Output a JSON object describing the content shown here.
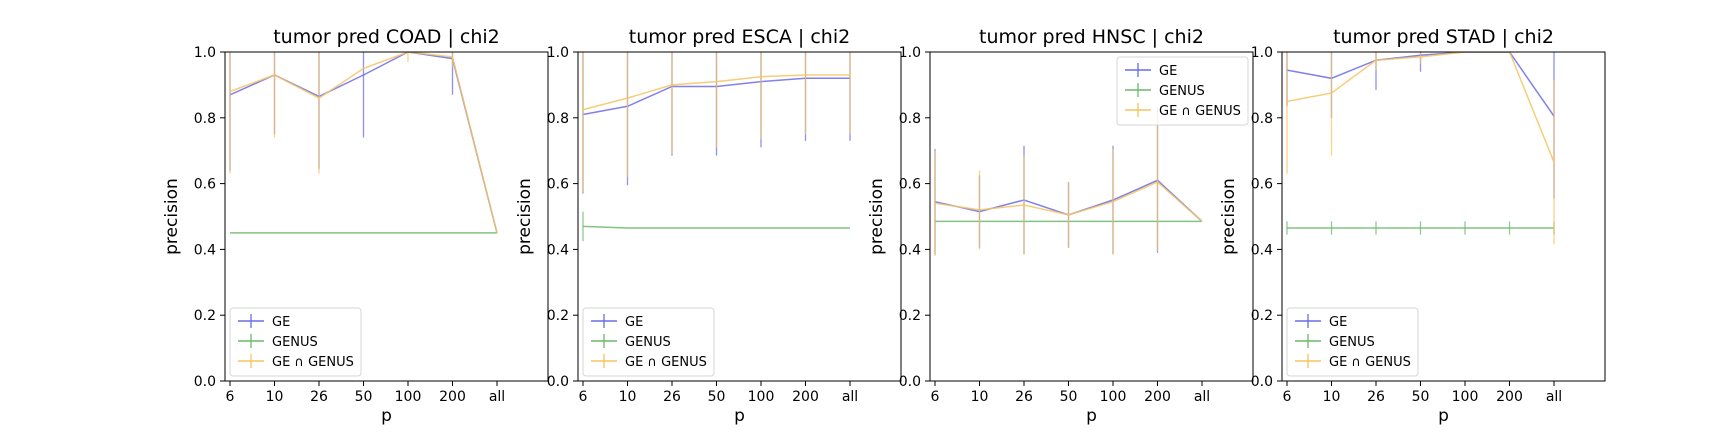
{
  "chart_data": [
    {
      "type": "line",
      "title": "tumor pred COAD | chi2",
      "xlabel": "p",
      "ylabel": "precision",
      "categories": [
        "6",
        "10",
        "26",
        "50",
        "100",
        "200",
        "all"
      ],
      "ylim": [
        0.0,
        1.0
      ],
      "yticks": [
        "0.0",
        "0.2",
        "0.4",
        "0.6",
        "0.8",
        "1.0"
      ],
      "legend_position": "lower-left",
      "series": [
        {
          "name": "GE",
          "color": "#6b6be8",
          "values": [
            0.87,
            0.93,
            0.865,
            0.93,
            1.0,
            0.98,
            0.45
          ],
          "err": [
            0.23,
            0.18,
            0.22,
            0.19,
            0.0,
            0.11,
            0.0
          ]
        },
        {
          "name": "GENUS",
          "color": "#6db86d",
          "values": [
            0.45,
            0.45,
            0.45,
            0.45,
            0.45,
            0.45,
            0.45
          ],
          "err": [
            0,
            0,
            0,
            0,
            0,
            0,
            0
          ]
        },
        {
          "name": "GE ∩ GENUS",
          "color": "#f5c462",
          "values": [
            0.88,
            0.93,
            0.86,
            0.95,
            1.0,
            0.985,
            0.45
          ],
          "err": [
            0.25,
            0.19,
            0.23,
            0.0,
            0.03,
            0.03,
            0.0
          ]
        }
      ]
    },
    {
      "type": "line",
      "title": "tumor pred ESCA | chi2",
      "xlabel": "p",
      "ylabel": "precision",
      "categories": [
        "6",
        "10",
        "26",
        "50",
        "100",
        "200",
        "all"
      ],
      "ylim": [
        0.0,
        1.0
      ],
      "yticks": [
        "0.0",
        "0.2",
        "0.4",
        "0.6",
        "0.8",
        "1.0"
      ],
      "legend_position": "lower-left",
      "series": [
        {
          "name": "GE",
          "color": "#6b6be8",
          "values": [
            0.81,
            0.835,
            0.895,
            0.895,
            0.91,
            0.92,
            0.92
          ],
          "err": [
            0.24,
            0.24,
            0.21,
            0.21,
            0.2,
            0.19,
            0.19
          ]
        },
        {
          "name": "GENUS",
          "color": "#6db86d",
          "values": [
            0.47,
            0.465,
            0.465,
            0.465,
            0.465,
            0.465,
            0.465
          ],
          "err": [
            0.045,
            0,
            0,
            0,
            0,
            0,
            0
          ]
        },
        {
          "name": "GE ∩ GENUS",
          "color": "#f5c462",
          "values": [
            0.825,
            0.86,
            0.9,
            0.91,
            0.925,
            0.93,
            0.93
          ],
          "err": [
            0.25,
            0.24,
            0.21,
            0.2,
            0.19,
            0.18,
            0.18
          ]
        }
      ]
    },
    {
      "type": "line",
      "title": "tumor pred HNSC | chi2",
      "xlabel": "p",
      "ylabel": "precision",
      "categories": [
        "6",
        "10",
        "26",
        "50",
        "100",
        "200",
        "all"
      ],
      "ylim": [
        0.0,
        1.0
      ],
      "yticks": [
        "0.0",
        "0.2",
        "0.4",
        "0.6",
        "0.8",
        "1.0"
      ],
      "legend_position": "upper-right",
      "series": [
        {
          "name": "GE",
          "color": "#6b6be8",
          "values": [
            0.545,
            0.515,
            0.55,
            0.505,
            0.55,
            0.61,
            0.485
          ],
          "err": [
            0.16,
            0.11,
            0.165,
            0.1,
            0.165,
            0.22,
            0.0
          ]
        },
        {
          "name": "GENUS",
          "color": "#6db86d",
          "values": [
            0.485,
            0.485,
            0.485,
            0.485,
            0.485,
            0.485,
            0.485
          ],
          "err": [
            0,
            0,
            0,
            0,
            0,
            0,
            0
          ]
        },
        {
          "name": "GE ∩ GENUS",
          "color": "#f5c462",
          "values": [
            0.54,
            0.52,
            0.535,
            0.505,
            0.545,
            0.605,
            0.485
          ],
          "err": [
            0.16,
            0.12,
            0.15,
            0.1,
            0.16,
            0.21,
            0.0
          ]
        }
      ]
    },
    {
      "type": "line",
      "title": "tumor pred STAD | chi2",
      "xlabel": "p",
      "ylabel": "precision",
      "categories": [
        "6",
        "10",
        "26",
        "50",
        "100",
        "200",
        "all"
      ],
      "ylim": [
        0.0,
        1.0
      ],
      "yticks": [
        "0.0",
        "0.2",
        "0.4",
        "0.6",
        "0.8",
        "1.0"
      ],
      "legend_position": "lower-left",
      "series": [
        {
          "name": "GE",
          "color": "#6b6be8",
          "values": [
            0.945,
            0.92,
            0.975,
            0.99,
            1.0,
            1.0,
            0.805
          ],
          "err": [
            0.11,
            0.12,
            0.09,
            0.05,
            0.0,
            0.0,
            0.25
          ]
        },
        {
          "name": "GENUS",
          "color": "#6db86d",
          "values": [
            0.465,
            0.465,
            0.465,
            0.465,
            0.465,
            0.465,
            0.465
          ],
          "err": [
            0.02,
            0.02,
            0.02,
            0.02,
            0.02,
            0.02,
            0.02
          ]
        },
        {
          "name": "GE ∩ GENUS",
          "color": "#f5c462",
          "values": [
            0.85,
            0.875,
            0.975,
            0.985,
            1.0,
            1.0,
            0.665
          ],
          "err": [
            0.22,
            0.19,
            0.03,
            0.02,
            0.0,
            0.0,
            0.25
          ]
        }
      ]
    }
  ]
}
